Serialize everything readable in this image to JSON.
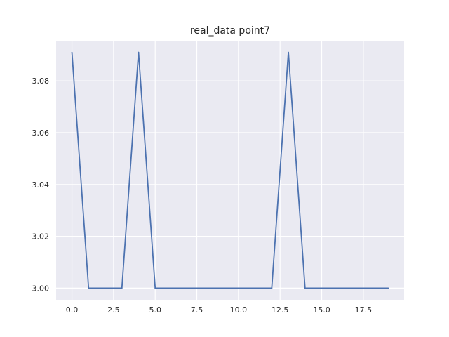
{
  "chart_data": {
    "type": "line",
    "title": "real_data point7",
    "xlabel": "",
    "ylabel": "",
    "xlim": [
      -0.95,
      19.95
    ],
    "ylim": [
      2.9955,
      3.0955
    ],
    "x_ticks": [
      0.0,
      2.5,
      5.0,
      7.5,
      10.0,
      12.5,
      15.0,
      17.5
    ],
    "x_tick_labels": [
      "0.0",
      "2.5",
      "5.0",
      "7.5",
      "10.0",
      "12.5",
      "15.0",
      "17.5"
    ],
    "y_ticks": [
      3.0,
      3.02,
      3.04,
      3.06,
      3.08
    ],
    "y_tick_labels": [
      "3.00",
      "3.02",
      "3.04",
      "3.06",
      "3.08"
    ],
    "grid": true,
    "series": [
      {
        "color": "#4c72b0",
        "x": [
          0,
          1,
          2,
          3,
          4,
          5,
          6,
          7,
          8,
          9,
          10,
          11,
          12,
          13,
          14,
          15,
          16,
          17,
          18,
          19
        ],
        "y": [
          3.091,
          3.0,
          3.0,
          3.0,
          3.091,
          3.0,
          3.0,
          3.0,
          3.0,
          3.0,
          3.0,
          3.0,
          3.0,
          3.091,
          3.0,
          3.0,
          3.0,
          3.0,
          3.0,
          3.0
        ]
      }
    ]
  }
}
